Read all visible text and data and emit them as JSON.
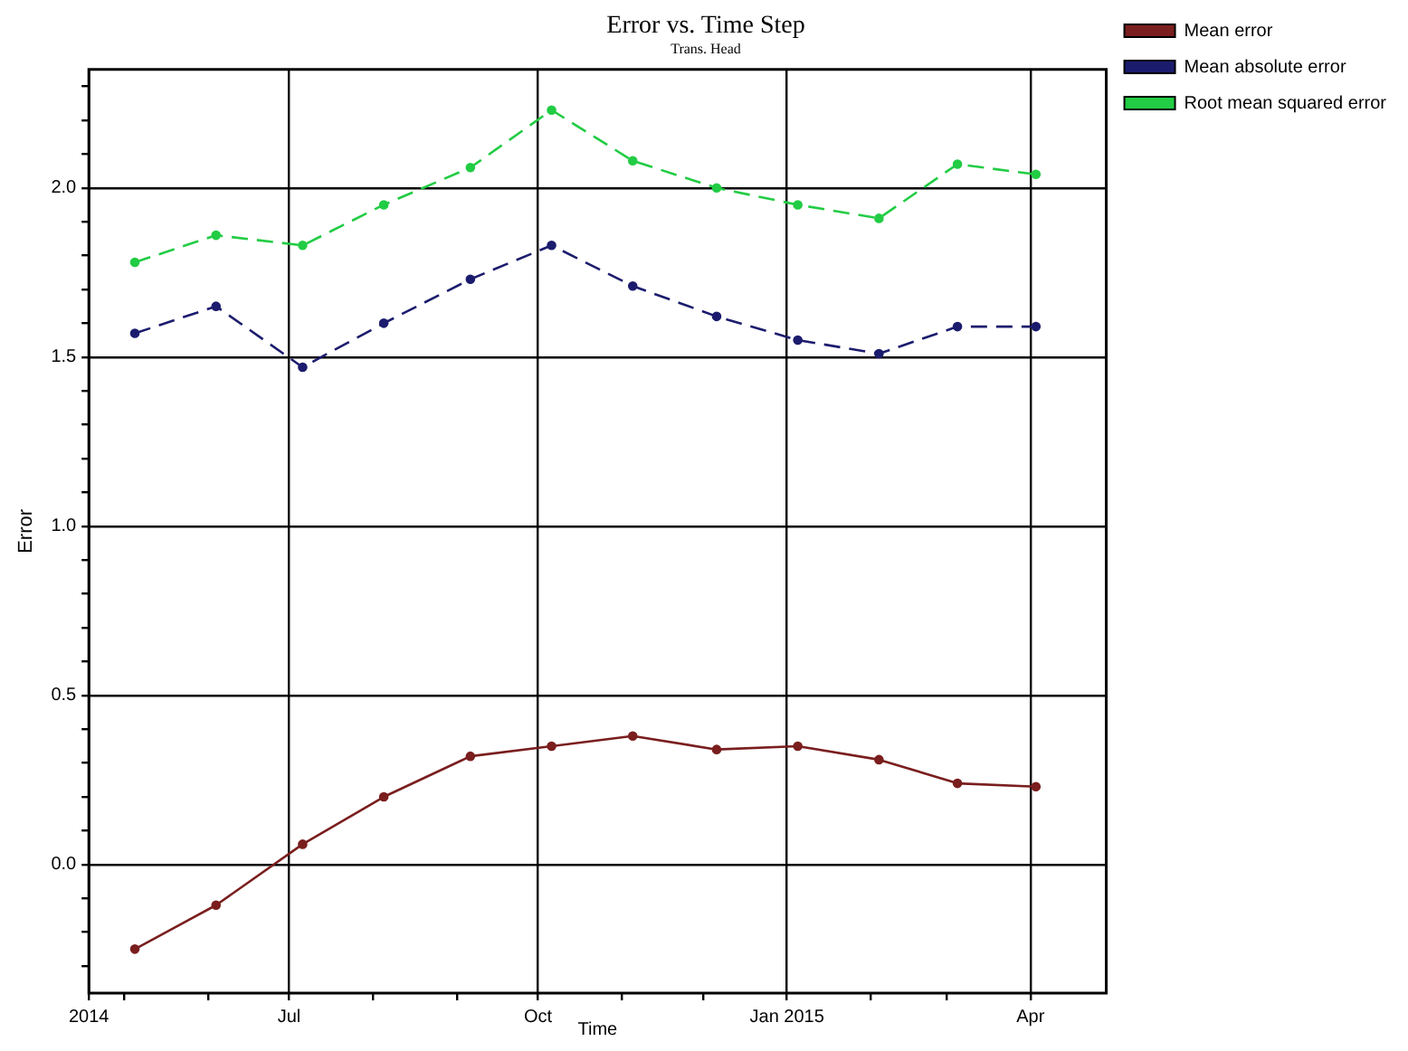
{
  "chart_data": {
    "type": "line",
    "title": "Error vs. Time Step",
    "subtitle": "Trans. Head",
    "xlabel": "Time",
    "ylabel": "Error",
    "x": [
      "2014-05-05",
      "2014-06-04",
      "2014-07-06",
      "2014-08-05",
      "2014-09-06",
      "2014-10-06",
      "2014-11-05",
      "2014-12-06",
      "2015-01-05",
      "2015-02-04",
      "2015-03-05",
      "2015-04-03"
    ],
    "series": [
      {
        "name": "Mean error",
        "color": "#7a1e1e",
        "line_style": "solid",
        "values": [
          -0.25,
          -0.12,
          0.06,
          0.2,
          0.32,
          0.35,
          0.38,
          0.34,
          0.35,
          0.31,
          0.24,
          0.23
        ]
      },
      {
        "name": "Mean absolute error",
        "color": "#1c1c6e",
        "line_style": "dashed",
        "values": [
          1.57,
          1.65,
          1.47,
          1.6,
          1.73,
          1.83,
          1.71,
          1.62,
          1.55,
          1.51,
          1.59,
          1.59
        ]
      },
      {
        "name": "Root mean squared error",
        "color": "#22cc44",
        "line_style": "dashed",
        "values": [
          1.78,
          1.86,
          1.83,
          1.95,
          2.06,
          2.23,
          2.08,
          2.0,
          1.95,
          1.91,
          2.07,
          2.04
        ]
      }
    ],
    "xlim": [
      "2014-04-18",
      "2015-04-29"
    ],
    "xticks": [
      {
        "value": "2014-04-18",
        "label": "2014"
      },
      {
        "value": "2014-05-01",
        "label": null
      },
      {
        "value": "2014-06-01",
        "label": null
      },
      {
        "value": "2014-07-01",
        "label": "Jul"
      },
      {
        "value": "2014-08-01",
        "label": null
      },
      {
        "value": "2014-09-01",
        "label": null
      },
      {
        "value": "2014-10-01",
        "label": "Oct"
      },
      {
        "value": "2014-11-01",
        "label": null
      },
      {
        "value": "2014-12-01",
        "label": null
      },
      {
        "value": "2015-01-01",
        "label": "Jan 2015"
      },
      {
        "value": "2015-02-01",
        "label": null
      },
      {
        "value": "2015-03-01",
        "label": null
      },
      {
        "value": "2015-04-01",
        "label": "Apr"
      }
    ],
    "ylim": [
      -0.38,
      2.35
    ],
    "yticks": [
      {
        "value": -0.3,
        "label": null
      },
      {
        "value": -0.2,
        "label": null
      },
      {
        "value": -0.1,
        "label": null
      },
      {
        "value": 0,
        "label": "0.0"
      },
      {
        "value": 0.1,
        "label": null
      },
      {
        "value": 0.2,
        "label": null
      },
      {
        "value": 0.3,
        "label": null
      },
      {
        "value": 0.4,
        "label": null
      },
      {
        "value": 0.5,
        "label": "0.5"
      },
      {
        "value": 0.6,
        "label": null
      },
      {
        "value": 0.7,
        "label": null
      },
      {
        "value": 0.8,
        "label": null
      },
      {
        "value": 0.9,
        "label": null
      },
      {
        "value": 1.0,
        "label": "1.0"
      },
      {
        "value": 1.1,
        "label": null
      },
      {
        "value": 1.2,
        "label": null
      },
      {
        "value": 1.3,
        "label": null
      },
      {
        "value": 1.4,
        "label": null
      },
      {
        "value": 1.5,
        "label": "1.5"
      },
      {
        "value": 1.6,
        "label": null
      },
      {
        "value": 1.7,
        "label": null
      },
      {
        "value": 1.8,
        "label": null
      },
      {
        "value": 1.9,
        "label": null
      },
      {
        "value": 2.0,
        "label": "2.0"
      },
      {
        "value": 2.1,
        "label": null
      },
      {
        "value": 2.2,
        "label": null
      },
      {
        "value": 2.3,
        "label": null
      }
    ],
    "grid": true,
    "legend": "top right",
    "marker": "circle"
  }
}
